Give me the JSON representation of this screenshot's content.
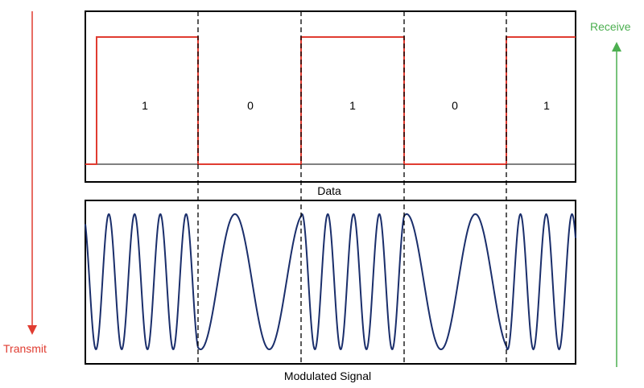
{
  "diagram": {
    "data_panel": {
      "caption": "Data",
      "bits": [
        "1",
        "0",
        "1",
        "0",
        "1"
      ]
    },
    "signal_panel": {
      "caption": "Modulated Signal"
    },
    "transmit": {
      "label": "Transmit",
      "color": "#e03c31"
    },
    "receive": {
      "label": "Receive",
      "color": "#4caf50"
    },
    "colors": {
      "data_line": "#e03c31",
      "signal_line": "#1a2e6b",
      "frame": "#000000"
    }
  }
}
